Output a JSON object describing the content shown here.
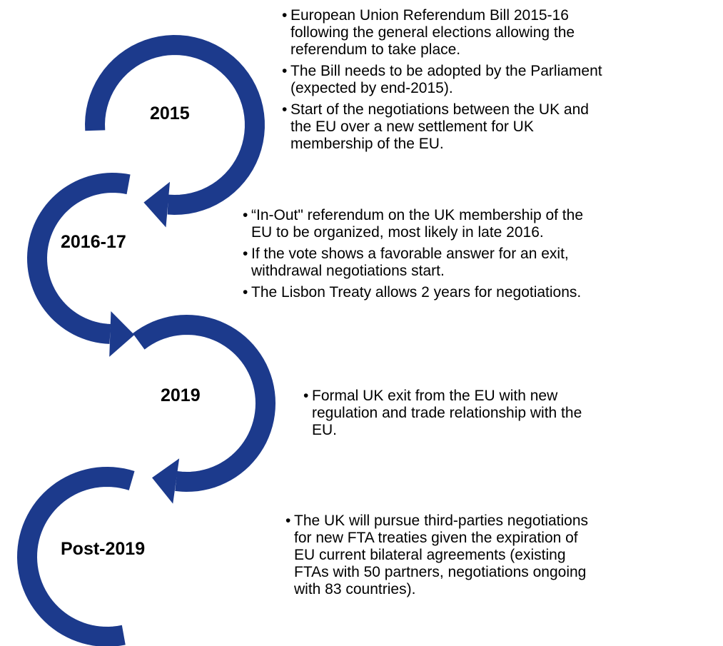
{
  "stages": [
    {
      "label": "2015",
      "bullets": [
        [
          "European Union Referendum Bill 2015-16",
          "following the general elections allowing the",
          "referendum to take place."
        ],
        [
          "The Bill needs to be adopted by the Parliament",
          "(expected by end-2015)."
        ],
        [
          "Start of the negotiations between the UK and",
          "the EU over a new settlement for UK",
          "membership of the EU."
        ]
      ]
    },
    {
      "label": "2016-17",
      "bullets": [
        [
          "“In-Out\" referendum on the UK membership of the",
          "EU to be organized, most likely in late 2016."
        ],
        [
          "If the vote shows a favorable answer for an exit,",
          "withdrawal negotiations start."
        ],
        [
          "The Lisbon Treaty allows 2 years for negotiations."
        ]
      ]
    },
    {
      "label": "2019",
      "bullets": [
        [
          "Formal UK exit from the EU with new",
          "regulation and trade relationship with the",
          "EU."
        ]
      ]
    },
    {
      "label": "Post-2019",
      "bullets": [
        [
          "The UK will pursue third-parties negotiations",
          "for new FTA treaties given the expiration of",
          "EU current bilateral agreements (existing",
          "FTAs with 50 partners, negotiations ongoing",
          "with 83 countries)."
        ]
      ]
    }
  ]
}
